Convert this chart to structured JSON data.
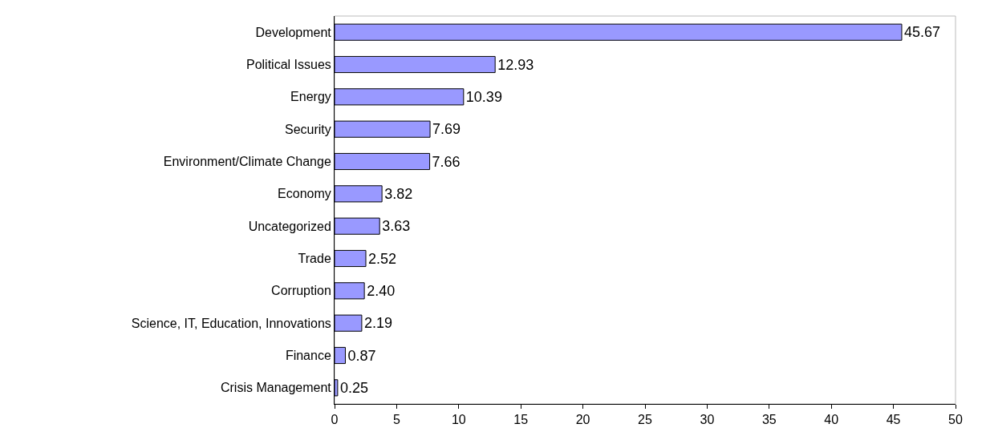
{
  "chart_data": {
    "type": "bar",
    "orientation": "horizontal",
    "categories": [
      "Development",
      "Political Issues",
      "Energy",
      "Security",
      "Environment/Climate Change",
      "Economy",
      "Uncategorized",
      "Trade",
      "Corruption",
      "Science, IT, Education, Innovations",
      "Finance",
      "Crisis Management"
    ],
    "values": [
      45.67,
      12.93,
      10.39,
      7.69,
      7.66,
      3.82,
      3.63,
      2.52,
      2.4,
      2.19,
      0.87,
      0.25
    ],
    "value_labels": [
      "45.67",
      "12.93",
      "10.39",
      "7.69",
      "7.66",
      "3.82",
      "3.63",
      "2.52",
      "2.40",
      "2.19",
      "0.87",
      "0.25"
    ],
    "color": "#9999ff",
    "xlim": [
      0,
      50
    ],
    "xticks": [
      0,
      5,
      10,
      15,
      20,
      25,
      30,
      35,
      40,
      45,
      50
    ],
    "grid": false,
    "legend": false
  }
}
